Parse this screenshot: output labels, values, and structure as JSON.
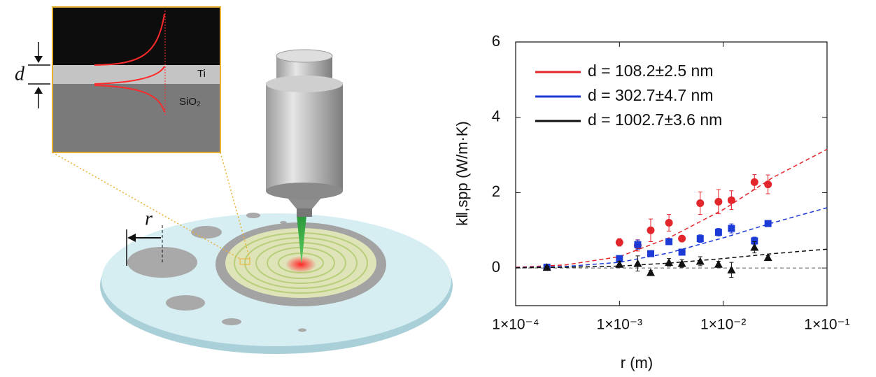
{
  "illustration": {
    "thickness_label": "d",
    "layer_top": "Ti",
    "layer_bottom": "SiO₂",
    "radius_label": "r"
  },
  "chart_data": {
    "type": "scatter",
    "x_label": "r  (m)",
    "y_label": "k‖,spp  (W/m·K)",
    "xscale": "log",
    "xlim": [
      0.0001,
      0.1
    ],
    "xticks": [
      {
        "value": 0.0001,
        "label": "1×10⁻⁴"
      },
      {
        "value": 0.001,
        "label": "1×10⁻³"
      },
      {
        "value": 0.01,
        "label": "1×10⁻²"
      },
      {
        "value": 0.1,
        "label": "1×10⁻¹"
      }
    ],
    "ylim": [
      -1,
      6
    ],
    "yticks": [
      0,
      2,
      4,
      6
    ],
    "reference_line": 0,
    "series": [
      {
        "name": "d = 108.2±2.5 nm",
        "color": "#e3262b",
        "marker": "circle",
        "x": [
          0.001,
          0.0015,
          0.002,
          0.003,
          0.004,
          0.006,
          0.009,
          0.012,
          0.02,
          0.027
        ],
        "values": [
          0.68,
          0.6,
          1.0,
          1.2,
          0.78,
          1.72,
          1.76,
          1.8,
          2.28,
          2.22
        ],
        "errors": [
          0.1,
          0.15,
          0.3,
          0.22,
          0.05,
          0.3,
          0.32,
          0.25,
          0.2,
          0.25
        ]
      },
      {
        "name": "d = 302.7±4.7 nm",
        "color": "#1c3ad6",
        "marker": "square",
        "x": [
          0.0002,
          0.001,
          0.0015,
          0.002,
          0.003,
          0.004,
          0.006,
          0.009,
          0.012,
          0.02,
          0.027
        ],
        "values": [
          0.02,
          0.25,
          0.62,
          0.38,
          0.7,
          0.42,
          0.78,
          0.95,
          1.05,
          0.72,
          1.18
        ],
        "errors": [
          0.03,
          0.06,
          0.12,
          0.08,
          0.08,
          0.08,
          0.1,
          0.1,
          0.12,
          0.1,
          0.05
        ]
      },
      {
        "name": "d = 1002.7±3.6 nm",
        "color": "#111111",
        "marker": "triangle",
        "x": [
          0.0002,
          0.001,
          0.0015,
          0.002,
          0.003,
          0.004,
          0.006,
          0.009,
          0.012,
          0.02,
          0.027
        ],
        "values": [
          0.02,
          0.1,
          0.12,
          -0.12,
          0.15,
          0.12,
          0.18,
          0.1,
          -0.05,
          0.55,
          0.28
        ],
        "errors": [
          0.03,
          0.08,
          0.2,
          0.05,
          0.1,
          0.1,
          0.12,
          0.08,
          0.2,
          0.15,
          0.05
        ]
      }
    ],
    "fit_x": [
      0.0001,
      0.0003,
      0.001,
      0.003,
      0.01,
      0.03,
      0.1
    ],
    "fits": [
      {
        "color": "#e3262b",
        "values": [
          0.02,
          0.08,
          0.3,
          0.8,
          1.55,
          2.4,
          3.15
        ]
      },
      {
        "color": "#1c3ad6",
        "values": [
          0.01,
          0.04,
          0.15,
          0.4,
          0.8,
          1.2,
          1.6
        ]
      },
      {
        "color": "#111111",
        "values": [
          0.005,
          0.02,
          0.05,
          0.13,
          0.25,
          0.38,
          0.5
        ]
      }
    ],
    "legend": "upper-left"
  }
}
